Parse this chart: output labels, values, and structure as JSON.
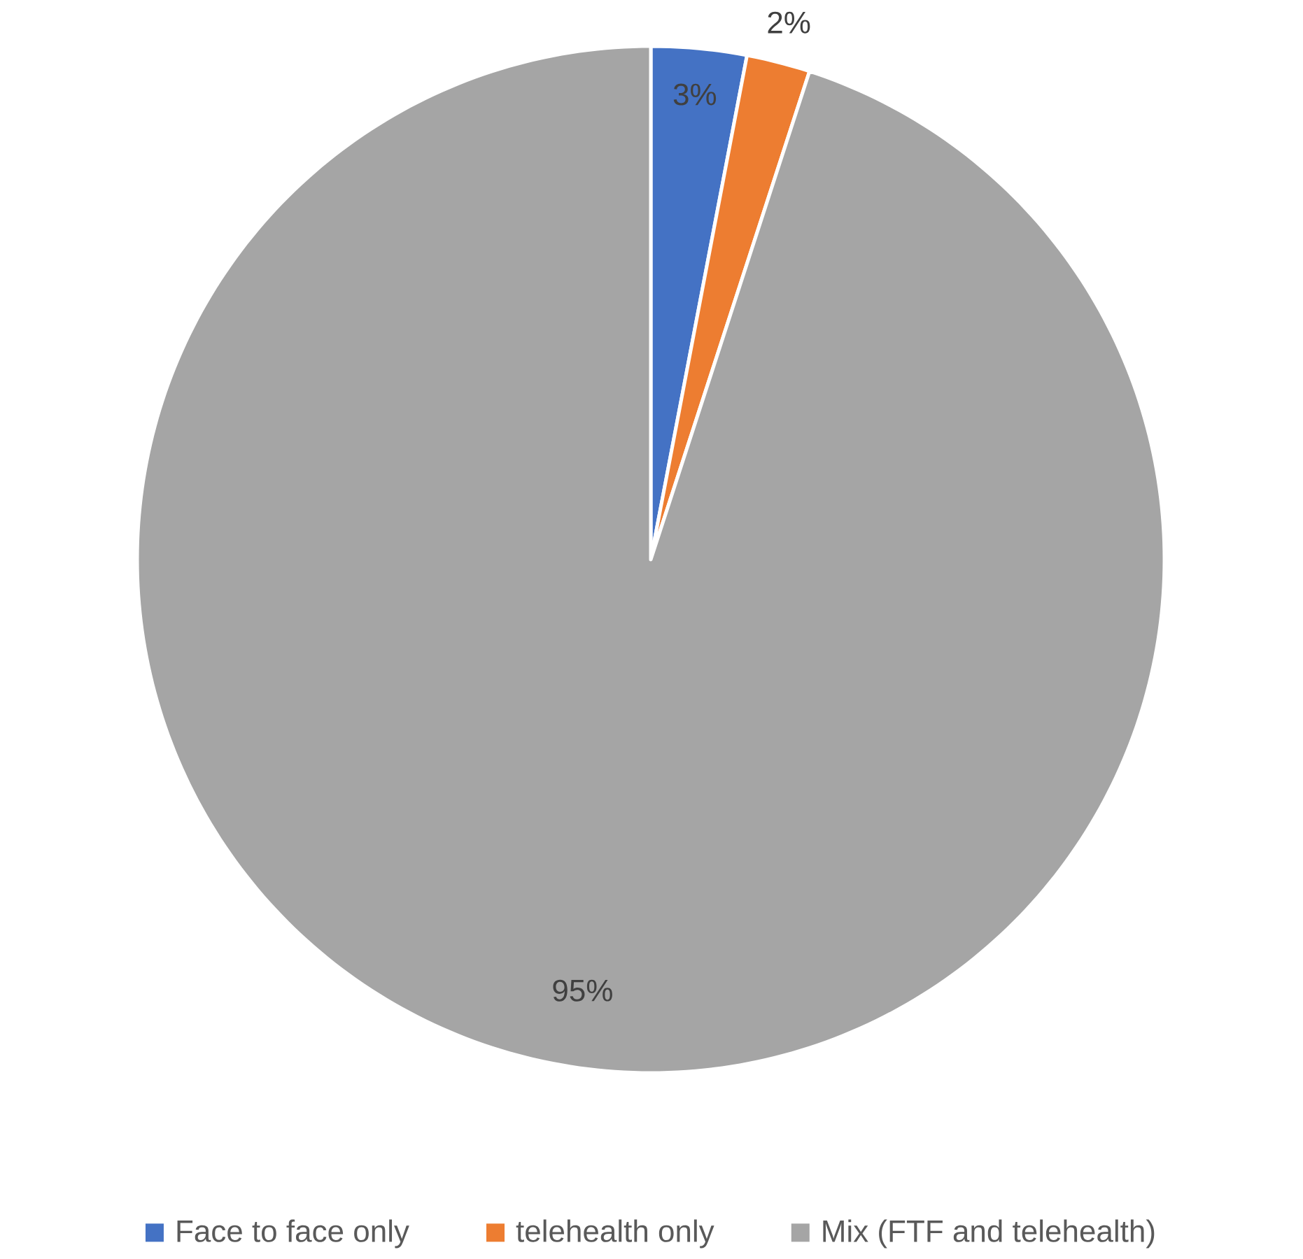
{
  "chart_data": {
    "type": "pie",
    "categories": [
      "Face to face only",
      "telehealth only",
      "Mix (FTF and telehealth)"
    ],
    "values": [
      3,
      2,
      95
    ],
    "colors": [
      "#4472c4",
      "#ed7d31",
      "#a5a5a5"
    ],
    "value_labels": [
      "3%",
      "2%",
      "95%"
    ],
    "legend": "bottom"
  }
}
